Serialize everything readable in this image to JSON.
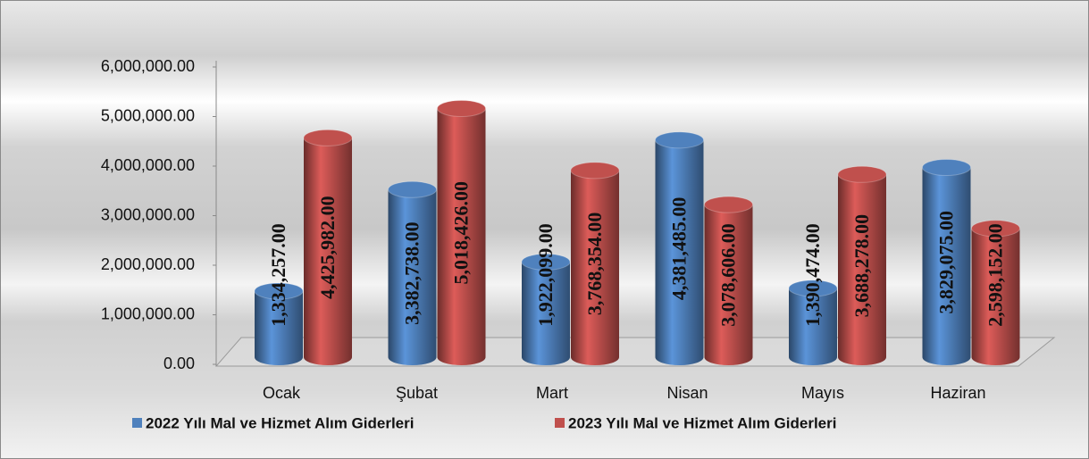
{
  "chart_data": {
    "type": "bar",
    "categories": [
      "Ocak",
      "Şubat",
      "Mart",
      "Nisan",
      "Mayıs",
      "Haziran"
    ],
    "series": [
      {
        "name": "2022 Yılı Mal ve Hizmet Alım Giderleri",
        "color": "#4f81bd",
        "values": [
          1334257,
          3382738,
          1922099,
          4381485,
          1390474,
          3829075
        ],
        "value_labels": [
          "1,334,257.00",
          "3,382,738.00",
          "1,922,099.00",
          "4,381,485.00",
          "1,390,474.00",
          "3,829,075.00"
        ]
      },
      {
        "name": "2023 Yılı Mal ve Hizmet Alım Giderleri",
        "color": "#c0504d",
        "values": [
          4425982,
          5018426,
          3768354,
          3078606,
          3688278,
          2598152
        ],
        "value_labels": [
          "4,425,982.00",
          "5,018,426.00",
          "3,768,354.00",
          "3,078,606.00",
          "3,688,278.00",
          "2,598,152.00"
        ]
      }
    ],
    "ylim": [
      0,
      6000000
    ],
    "yticks": [
      {
        "value": 0,
        "label": "0.00"
      },
      {
        "value": 1000000,
        "label": "1,000,000.00"
      },
      {
        "value": 2000000,
        "label": "2,000,000.00"
      },
      {
        "value": 3000000,
        "label": "3,000,000.00"
      },
      {
        "value": 4000000,
        "label": "4,000,000.00"
      },
      {
        "value": 5000000,
        "label": "5,000,000.00"
      },
      {
        "value": 6000000,
        "label": "6,000,000.00"
      }
    ],
    "legend": "bottom"
  }
}
